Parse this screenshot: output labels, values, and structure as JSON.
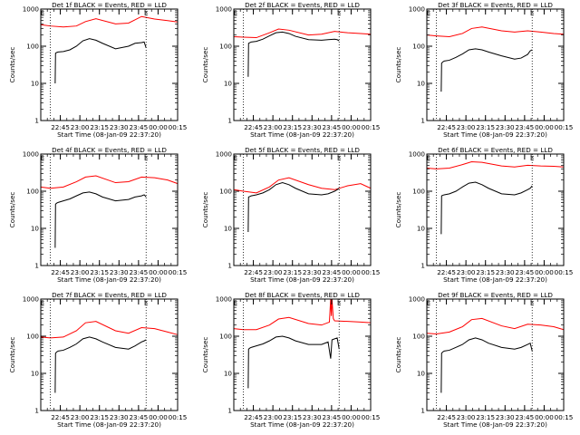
{
  "chart_data": [
    {
      "type": "line",
      "title": "Det 1f BLACK = Events, RED = LLD",
      "xlabel": "Start Time (08-Jan-09 22:37:20)",
      "ylabel": "Counts/sec",
      "y_scale": "log",
      "ylim": [
        1,
        1000
      ],
      "y_ticks": [
        "1",
        "10",
        "100",
        "1000"
      ],
      "xlim_min": [
        -7.33,
        97.67
      ],
      "x_tick_labels": [
        "22:45",
        "23:00",
        "23:15",
        "23:30",
        "23:45",
        "00:00",
        "00:15"
      ],
      "x_tick_min": [
        7.67,
        22.67,
        37.67,
        52.67,
        67.67,
        82.67,
        97.67
      ],
      "markers": [
        "E",
        "E"
      ],
      "marker_min": [
        -6.0,
        73.5
      ],
      "dotted_vlines_min": [
        0.0,
        73.5
      ],
      "grid": false,
      "series": [
        {
          "color": "#ff0000",
          "x_min": [
            -7.33,
            0,
            10,
            20,
            27,
            35,
            50,
            60,
            70,
            80,
            90,
            97.67
          ],
          "values": [
            380,
            350,
            330,
            350,
            460,
            550,
            400,
            420,
            630,
            540,
            490,
            450
          ]
        },
        {
          "color": "#000000",
          "x_min": [
            3.7,
            4.0,
            5,
            6,
            10,
            15,
            20,
            25,
            30,
            35,
            40,
            50,
            60,
            65,
            70,
            72,
            73.5
          ],
          "values": [
            10,
            65,
            68,
            70,
            72,
            80,
            100,
            140,
            160,
            145,
            120,
            85,
            100,
            120,
            125,
            130,
            90
          ]
        }
      ]
    },
    {
      "type": "line",
      "title": "Det 2f BLACK = Events, RED = LLD",
      "xlabel": "Start Time (08-Jan-09 22:37:20)",
      "ylabel": "Counts/sec",
      "y_scale": "log",
      "ylim": [
        1,
        1000
      ],
      "y_ticks": [
        "1",
        "10",
        "100",
        "1000"
      ],
      "xlim_min": [
        -7.33,
        97.67
      ],
      "x_tick_labels": [
        "22:45",
        "23:00",
        "23:15",
        "23:30",
        "23:45",
        "00:00",
        "00:15"
      ],
      "x_tick_min": [
        7.67,
        22.67,
        37.67,
        52.67,
        67.67,
        82.67,
        97.67
      ],
      "markers": [
        "E",
        "E"
      ],
      "marker_min": [
        -6.0,
        73.5
      ],
      "dotted_vlines_min": [
        0.0,
        73.5
      ],
      "grid": false,
      "series": [
        {
          "color": "#ff0000",
          "x_min": [
            -7.33,
            0,
            10,
            20,
            27,
            35,
            50,
            60,
            70,
            80,
            90,
            97.67
          ],
          "values": [
            180,
            175,
            170,
            230,
            290,
            270,
            200,
            210,
            250,
            230,
            220,
            210
          ]
        },
        {
          "color": "#000000",
          "x_min": [
            3.7,
            4.0,
            5,
            6,
            10,
            15,
            20,
            25,
            30,
            35,
            40,
            50,
            60,
            65,
            70,
            72,
            73.5
          ],
          "values": [
            15,
            120,
            125,
            130,
            135,
            155,
            190,
            230,
            240,
            220,
            185,
            150,
            145,
            150,
            155,
            150,
            140
          ]
        }
      ]
    },
    {
      "type": "line",
      "title": "Det 3f BLACK = Events, RED = LLD",
      "xlabel": "Start Time (08-Jan-09 22:37:20)",
      "ylabel": "Counts/sec",
      "y_scale": "log",
      "ylim": [
        1,
        1000
      ],
      "y_ticks": [
        "1",
        "10",
        "100",
        "1000"
      ],
      "xlim_min": [
        -7.33,
        97.67
      ],
      "x_tick_labels": [
        "22:45",
        "23:00",
        "23:15",
        "23:30",
        "23:45",
        "00:00",
        "00:15"
      ],
      "x_tick_min": [
        7.67,
        22.67,
        37.67,
        52.67,
        67.67,
        82.67,
        97.67
      ],
      "markers": [
        "E",
        "E"
      ],
      "marker_min": [
        -6.0,
        73.5
      ],
      "dotted_vlines_min": [
        0.0,
        73.5
      ],
      "grid": false,
      "series": [
        {
          "color": "#ff0000",
          "x_min": [
            -7.33,
            0,
            10,
            20,
            27,
            35,
            50,
            60,
            70,
            80,
            90,
            97.67
          ],
          "values": [
            200,
            190,
            180,
            220,
            300,
            330,
            260,
            240,
            260,
            240,
            220,
            210
          ]
        },
        {
          "color": "#000000",
          "x_min": [
            3.7,
            4.0,
            5,
            6,
            10,
            15,
            20,
            25,
            30,
            35,
            40,
            50,
            60,
            65,
            70,
            72,
            73.5
          ],
          "values": [
            6,
            35,
            38,
            40,
            42,
            50,
            62,
            80,
            85,
            80,
            70,
            55,
            45,
            48,
            60,
            75,
            80
          ]
        }
      ]
    },
    {
      "type": "line",
      "title": "Det 4f BLACK = Events, RED = LLD",
      "xlabel": "Start Time (08-Jan-09 22:37:20)",
      "ylabel": "Counts/sec",
      "y_scale": "log",
      "ylim": [
        1,
        1000
      ],
      "y_ticks": [
        "1",
        "10",
        "100",
        "1000"
      ],
      "xlim_min": [
        -7.33,
        97.67
      ],
      "x_tick_labels": [
        "22:45",
        "23:00",
        "23:15",
        "23:30",
        "23:45",
        "00:00",
        "00:15"
      ],
      "x_tick_min": [
        7.67,
        22.67,
        37.67,
        52.67,
        67.67,
        82.67,
        97.67
      ],
      "markers": [
        "E",
        "E"
      ],
      "marker_min": [
        -6.0,
        73.5
      ],
      "dotted_vlines_min": [
        0.0,
        73.5
      ],
      "grid": false,
      "series": [
        {
          "color": "#ff0000",
          "x_min": [
            -7.33,
            0,
            10,
            20,
            27,
            35,
            50,
            60,
            70,
            80,
            90,
            97.67
          ],
          "values": [
            130,
            120,
            130,
            180,
            240,
            260,
            170,
            180,
            240,
            230,
            200,
            160
          ]
        },
        {
          "color": "#000000",
          "x_min": [
            3.7,
            4.0,
            5,
            6,
            10,
            15,
            20,
            25,
            30,
            35,
            40,
            50,
            60,
            65,
            70,
            72,
            73.5
          ],
          "values": [
            3,
            45,
            48,
            50,
            55,
            62,
            75,
            90,
            95,
            85,
            70,
            55,
            60,
            70,
            75,
            80,
            70
          ]
        }
      ]
    },
    {
      "type": "line",
      "title": "Det 5f BLACK = Events, RED = LLD",
      "xlabel": "Start Time (08-Jan-09 22:37:20)",
      "ylabel": "Counts/sec",
      "y_scale": "log",
      "ylim": [
        1,
        1000
      ],
      "y_ticks": [
        "1",
        "10",
        "100",
        "1000"
      ],
      "xlim_min": [
        -7.33,
        97.67
      ],
      "x_tick_labels": [
        "22:45",
        "23:00",
        "23:15",
        "23:30",
        "23:45",
        "00:00",
        "00:15"
      ],
      "x_tick_min": [
        7.67,
        22.67,
        37.67,
        52.67,
        67.67,
        82.67,
        97.67
      ],
      "markers": [
        "E",
        "E"
      ],
      "marker_min": [
        -6.0,
        73.5
      ],
      "dotted_vlines_min": [
        0.0,
        73.5
      ],
      "grid": false,
      "series": [
        {
          "color": "#ff0000",
          "x_min": [
            -7.33,
            0,
            10,
            20,
            27,
            35,
            50,
            60,
            70,
            80,
            90,
            97.67
          ],
          "values": [
            110,
            100,
            90,
            130,
            200,
            230,
            150,
            120,
            110,
            140,
            160,
            120
          ]
        },
        {
          "color": "#000000",
          "x_min": [
            3.7,
            4.0,
            5,
            6,
            10,
            15,
            20,
            25,
            30,
            35,
            40,
            50,
            60,
            65,
            70,
            72,
            73.5
          ],
          "values": [
            8,
            70,
            72,
            75,
            80,
            90,
            110,
            150,
            170,
            150,
            120,
            85,
            80,
            85,
            100,
            110,
            120
          ]
        }
      ]
    },
    {
      "type": "line",
      "title": "Det 6f BLACK = Events, RED = LLD",
      "xlabel": "Start Time (08-Jan-09 22:37:20)",
      "ylabel": "Counts/sec",
      "y_scale": "log",
      "ylim": [
        1,
        1000
      ],
      "y_ticks": [
        "1",
        "10",
        "100",
        "1000"
      ],
      "xlim_min": [
        -7.33,
        97.67
      ],
      "x_tick_labels": [
        "22:45",
        "23:00",
        "23:15",
        "23:30",
        "23:45",
        "00:00",
        "00:15"
      ],
      "x_tick_min": [
        7.67,
        22.67,
        37.67,
        52.67,
        67.67,
        82.67,
        97.67
      ],
      "markers": [
        "E",
        "E"
      ],
      "marker_min": [
        -6.0,
        73.5
      ],
      "dotted_vlines_min": [
        0.0,
        73.5
      ],
      "grid": false,
      "series": [
        {
          "color": "#ff0000",
          "x_min": [
            -7.33,
            0,
            10,
            20,
            27,
            35,
            50,
            60,
            70,
            80,
            90,
            97.67
          ],
          "values": [
            420,
            400,
            420,
            520,
            620,
            600,
            480,
            450,
            500,
            480,
            470,
            450
          ]
        },
        {
          "color": "#000000",
          "x_min": [
            3.7,
            4.0,
            5,
            6,
            10,
            15,
            20,
            25,
            30,
            35,
            40,
            50,
            60,
            65,
            70,
            72,
            73.5
          ],
          "values": [
            7,
            75,
            78,
            80,
            85,
            100,
            130,
            165,
            175,
            150,
            120,
            85,
            80,
            90,
            110,
            120,
            140
          ]
        }
      ]
    },
    {
      "type": "line",
      "title": "Det 7f BLACK = Events, RED = LLD",
      "xlabel": "Start Time (08-Jan-09 22:37:20)",
      "ylabel": "Counts/sec",
      "y_scale": "log",
      "ylim": [
        1,
        1000
      ],
      "y_ticks": [
        "1",
        "10",
        "100",
        "1000"
      ],
      "xlim_min": [
        -7.33,
        97.67
      ],
      "x_tick_labels": [
        "22:45",
        "23:00",
        "23:15",
        "23:30",
        "23:45",
        "00:00",
        "00:15"
      ],
      "x_tick_min": [
        7.67,
        22.67,
        37.67,
        52.67,
        67.67,
        82.67,
        97.67
      ],
      "markers": [
        "E",
        "E"
      ],
      "marker_min": [
        -6.0,
        73.5
      ],
      "dotted_vlines_min": [
        0.0,
        73.5
      ],
      "grid": false,
      "series": [
        {
          "color": "#ff0000",
          "x_min": [
            -7.33,
            0,
            10,
            20,
            27,
            35,
            50,
            60,
            70,
            80,
            90,
            97.67
          ],
          "values": [
            95,
            90,
            95,
            140,
            230,
            250,
            140,
            120,
            170,
            160,
            130,
            110
          ]
        },
        {
          "color": "#000000",
          "x_min": [
            3.7,
            4.0,
            5,
            6,
            10,
            15,
            20,
            25,
            30,
            35,
            40,
            50,
            60,
            65,
            70,
            72,
            73.5
          ],
          "values": [
            3,
            35,
            38,
            40,
            42,
            50,
            62,
            85,
            95,
            85,
            70,
            50,
            45,
            55,
            70,
            75,
            80
          ]
        }
      ]
    },
    {
      "type": "line",
      "title": "Det 8f BLACK = Events, RED = LLD",
      "xlabel": "Start Time (08-Jan-09 22:37:20)",
      "ylabel": "Counts/sec",
      "y_scale": "log",
      "ylim": [
        1,
        1000
      ],
      "y_ticks": [
        "1",
        "10",
        "100",
        "1000"
      ],
      "xlim_min": [
        -7.33,
        97.67
      ],
      "x_tick_labels": [
        "22:45",
        "23:00",
        "23:15",
        "23:30",
        "23:45",
        "00:00",
        "00:15"
      ],
      "x_tick_min": [
        7.67,
        22.67,
        37.67,
        52.67,
        67.67,
        82.67,
        97.67
      ],
      "markers": [
        "E",
        "E"
      ],
      "marker_min": [
        -6.0,
        73.5
      ],
      "dotted_vlines_min": [
        0.0,
        73.5
      ],
      "grid": false,
      "series": [
        {
          "color": "#ff0000",
          "x_min": [
            -7.33,
            0,
            10,
            20,
            27,
            35,
            50,
            60,
            66,
            67,
            67.5,
            68,
            69,
            70,
            80,
            90,
            97.67
          ],
          "values": [
            160,
            150,
            150,
            200,
            290,
            320,
            220,
            200,
            240,
            1000,
            350,
            1000,
            300,
            260,
            250,
            240,
            230
          ]
        },
        {
          "color": "#000000",
          "x_min": [
            3.7,
            4.0,
            5,
            6,
            10,
            15,
            20,
            25,
            30,
            35,
            40,
            50,
            60,
            65,
            67,
            68,
            70,
            72,
            73.5
          ],
          "values": [
            4,
            45,
            48,
            50,
            55,
            62,
            75,
            95,
            100,
            90,
            75,
            60,
            60,
            70,
            25,
            80,
            85,
            90,
            45
          ]
        }
      ]
    },
    {
      "type": "line",
      "title": "Det 9f BLACK = Events, RED = LLD",
      "xlabel": "Start Time (08-Jan-09 22:37:20)",
      "ylabel": "Counts/sec",
      "y_scale": "log",
      "ylim": [
        1,
        1000
      ],
      "y_ticks": [
        "1",
        "10",
        "100",
        "1000"
      ],
      "xlim_min": [
        -7.33,
        97.67
      ],
      "x_tick_labels": [
        "22:45",
        "23:00",
        "23:15",
        "23:30",
        "23:45",
        "00:00",
        "00:15"
      ],
      "x_tick_min": [
        7.67,
        22.67,
        37.67,
        52.67,
        67.67,
        82.67,
        97.67
      ],
      "markers": [
        "E",
        "E"
      ],
      "marker_min": [
        -6.0,
        73.5
      ],
      "dotted_vlines_min": [
        0.0,
        73.5
      ],
      "grid": false,
      "series": [
        {
          "color": "#ff0000",
          "x_min": [
            -7.33,
            0,
            10,
            20,
            27,
            35,
            50,
            60,
            70,
            80,
            90,
            97.67
          ],
          "values": [
            120,
            115,
            130,
            180,
            280,
            300,
            190,
            160,
            210,
            200,
            180,
            150
          ]
        },
        {
          "color": "#000000",
          "x_min": [
            3.7,
            4.0,
            5,
            6,
            10,
            15,
            20,
            25,
            30,
            35,
            40,
            50,
            60,
            65,
            70,
            72,
            73.5
          ],
          "values": [
            3,
            35,
            38,
            40,
            42,
            50,
            60,
            80,
            90,
            80,
            65,
            50,
            45,
            50,
            60,
            65,
            40
          ]
        }
      ]
    }
  ]
}
